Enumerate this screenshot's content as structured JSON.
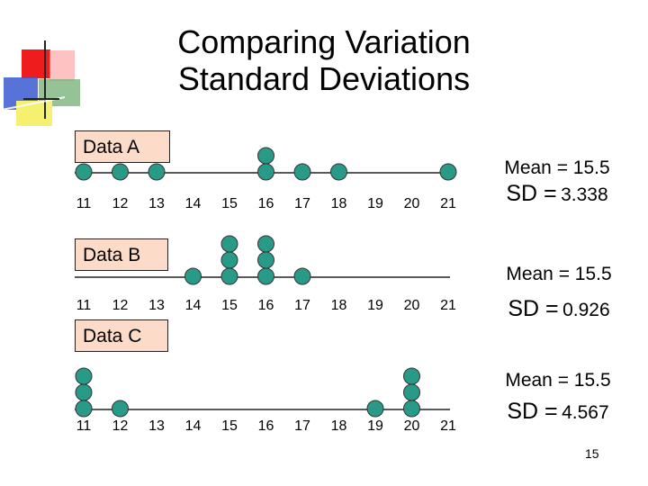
{
  "slide": {
    "title_line1": "Comparing Variation",
    "title_line2": "Standard Deviations",
    "page_number": "15"
  },
  "colors": {
    "dot_fill": "#2a9a88",
    "dot_stroke": "#333333",
    "label_bg": "#fcdcc8"
  },
  "chart_data": [
    {
      "type": "scatter",
      "title": "Data A",
      "x_ticks": [
        "11",
        "12",
        "13",
        "14",
        "15",
        "16",
        "17",
        "18",
        "19",
        "20",
        "21"
      ],
      "points": [
        11,
        12,
        13,
        16,
        16,
        17,
        18,
        21
      ],
      "mean_text": "Mean = 15.5",
      "sd_label": "SD =",
      "sd_value": "3.338"
    },
    {
      "type": "scatter",
      "title": "Data B",
      "x_ticks": [
        "11",
        "12",
        "13",
        "14",
        "15",
        "16",
        "17",
        "18",
        "19",
        "20",
        "21"
      ],
      "points": [
        14,
        15,
        15,
        15,
        16,
        16,
        16,
        17
      ],
      "mean_text": "Mean = 15.5",
      "sd_label": "SD =",
      "sd_value": "0.926"
    },
    {
      "type": "scatter",
      "title": "Data C",
      "x_ticks": [
        "11",
        "12",
        "13",
        "14",
        "15",
        "16",
        "17",
        "18",
        "19",
        "20",
        "21"
      ],
      "points": [
        11,
        11,
        11,
        12,
        19,
        20,
        20,
        20
      ],
      "mean_text": "Mean = 15.5",
      "sd_label": "SD =",
      "sd_value": "4.567"
    }
  ]
}
